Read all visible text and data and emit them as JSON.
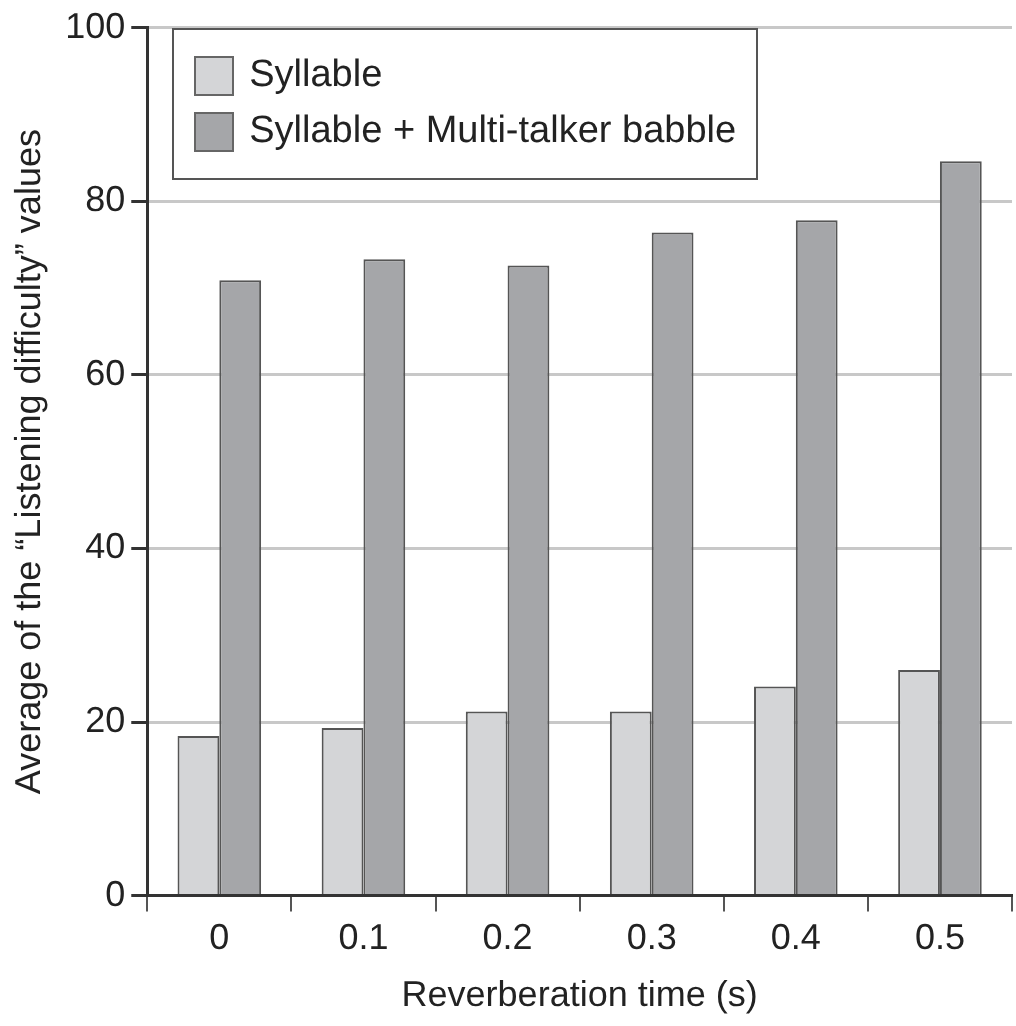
{
  "chart_data": {
    "type": "bar",
    "xlabel": "Reverberation time (s)",
    "ylabel": "Average of the “Listening difficulty” values",
    "categories": [
      "0",
      "0.1",
      "0.2",
      "0.3",
      "0.4",
      "0.5"
    ],
    "series": [
      {
        "name": "Syllable",
        "color": "#d4d5d7",
        "values": [
          18.4,
          19.3,
          21.2,
          21.2,
          24.1,
          26.0
        ]
      },
      {
        "name": "Syllable + Multi-talker babble",
        "color": "#a5a6a9",
        "values": [
          70.9,
          73.3,
          72.6,
          76.4,
          77.8,
          84.6
        ]
      }
    ],
    "ylim": [
      0,
      100
    ],
    "yticks": [
      0,
      20,
      40,
      60,
      80,
      100
    ],
    "grid": "y",
    "legend": "top left"
  }
}
